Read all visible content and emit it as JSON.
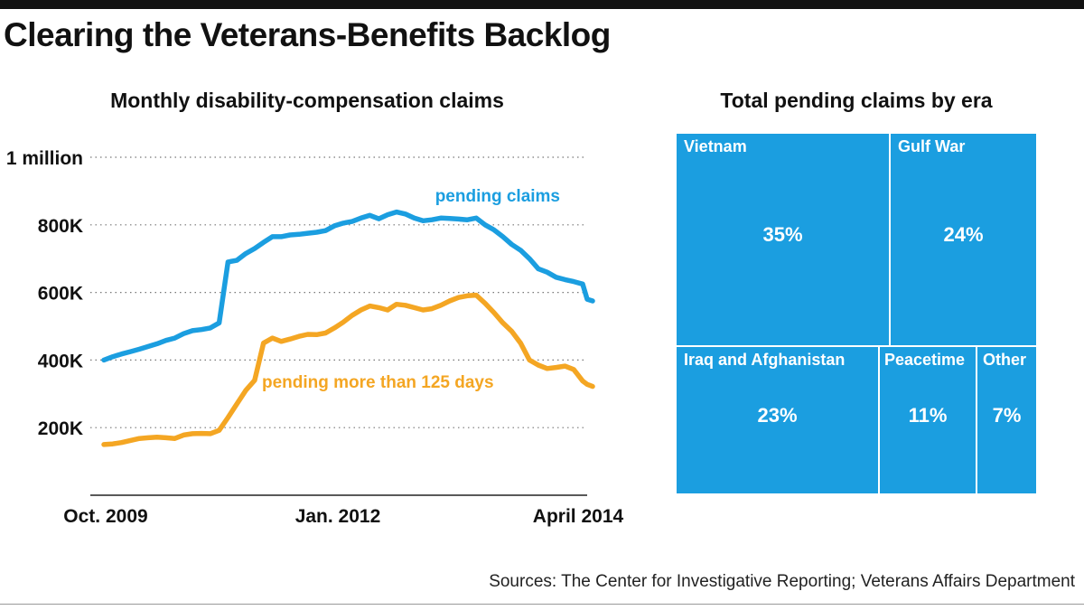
{
  "headline": "Clearing the Veterans-Benefits Backlog",
  "source": "Sources: The Center for Investigative Reporting; Veterans Affairs Department",
  "colors": {
    "pending": "#1b9ee0",
    "over125": "#f4a623",
    "treemap": "#1b9ee0",
    "text": "#111111"
  },
  "chart_data": [
    {
      "type": "line",
      "title": "Monthly disability-compensation claims",
      "xlabel": "",
      "ylabel": "",
      "x_tick_labels": [
        "Oct. 2009",
        "Jan. 2012",
        "April 2014"
      ],
      "y_tick_labels": [
        "200K",
        "400K",
        "600K",
        "800K",
        "1 million"
      ],
      "y_ticks": [
        200000,
        400000,
        600000,
        800000,
        1000000
      ],
      "ylim": [
        0,
        1000000
      ],
      "grid": true,
      "x": [
        "2009-10",
        "2009-11",
        "2009-12",
        "2010-01",
        "2010-02",
        "2010-03",
        "2010-04",
        "2010-05",
        "2010-06",
        "2010-07",
        "2010-08",
        "2010-09",
        "2010-10",
        "2010-11",
        "2010-12",
        "2011-01",
        "2011-02",
        "2011-03",
        "2011-04",
        "2011-05",
        "2011-06",
        "2011-07",
        "2011-08",
        "2011-09",
        "2011-10",
        "2011-11",
        "2011-12",
        "2012-01",
        "2012-02",
        "2012-03",
        "2012-04",
        "2012-05",
        "2012-06",
        "2012-07",
        "2012-08",
        "2012-09",
        "2012-10",
        "2012-11",
        "2012-12",
        "2013-01",
        "2013-02",
        "2013-03",
        "2013-04",
        "2013-05",
        "2013-06",
        "2013-07",
        "2013-08",
        "2013-09",
        "2013-10",
        "2013-11",
        "2013-12",
        "2014-01",
        "2014-02",
        "2014-03",
        "2014-04"
      ],
      "series": [
        {
          "name": "pending claims",
          "values": [
            400000,
            410000,
            418000,
            425000,
            432000,
            440000,
            448000,
            458000,
            465000,
            478000,
            487000,
            490000,
            495000,
            510000,
            690000,
            695000,
            715000,
            730000,
            748000,
            765000,
            765000,
            770000,
            772000,
            775000,
            778000,
            783000,
            797000,
            805000,
            810000,
            820000,
            828000,
            818000,
            830000,
            838000,
            832000,
            820000,
            812000,
            815000,
            820000,
            819000,
            817000,
            815000,
            820000,
            800000,
            785000,
            765000,
            742000,
            725000,
            700000,
            670000,
            660000,
            645000,
            638000,
            632000,
            625000
          ]
        },
        {
          "name": "pending more than 125 days",
          "values": [
            150000,
            152000,
            156000,
            162000,
            168000,
            170000,
            172000,
            170000,
            168000,
            178000,
            182000,
            183000,
            182000,
            192000,
            230000,
            270000,
            310000,
            340000,
            450000,
            465000,
            455000,
            462000,
            470000,
            476000,
            475000,
            480000,
            495000,
            512000,
            532000,
            548000,
            560000,
            555000,
            548000,
            565000,
            562000,
            555000,
            548000,
            552000,
            562000,
            575000,
            585000,
            590000,
            592000,
            568000,
            540000,
            510000,
            485000,
            450000,
            400000,
            385000,
            375000,
            378000,
            382000,
            372000,
            338000
          ]
        }
      ],
      "end_points": [
        [
          580000,
          575000
        ],
        [
          328000,
          322000
        ]
      ]
    },
    {
      "type": "treemap",
      "title": "Total pending claims by era",
      "items": [
        {
          "label": "Vietnam",
          "pct": "35%"
        },
        {
          "label": "Gulf War",
          "pct": "24%"
        },
        {
          "label": "Iraq and Afghanistan",
          "pct": "23%"
        },
        {
          "label": "Peacetime",
          "pct": "11%"
        },
        {
          "label": "Other",
          "pct": "7%"
        }
      ]
    }
  ]
}
